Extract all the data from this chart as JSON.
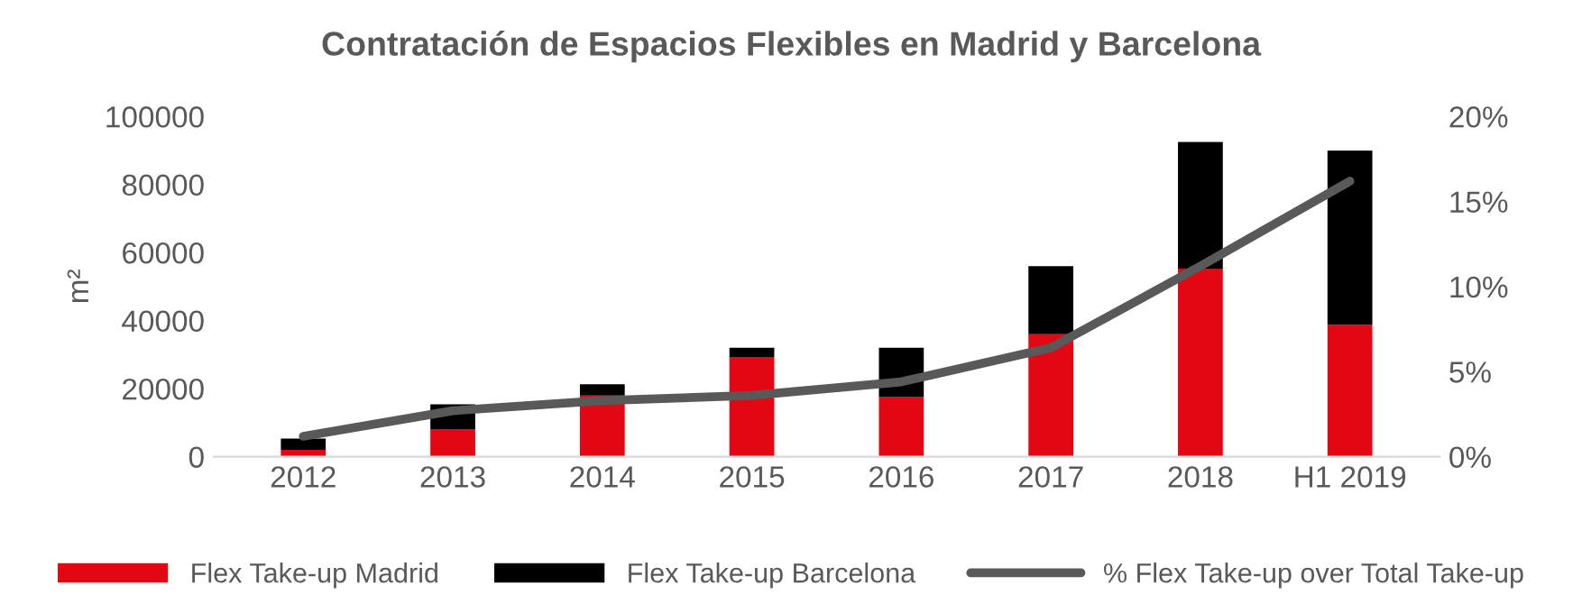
{
  "chart_data": {
    "type": "bar",
    "title": "Contratación de Espacios Flexibles en Madrid y Barcelona",
    "ylabel": "m²",
    "categories": [
      "2012",
      "2013",
      "2014",
      "2015",
      "2016",
      "2017",
      "2018",
      "H1 2019"
    ],
    "stacked": true,
    "legend": "bottom",
    "grid": false,
    "ylim": [
      0,
      100000
    ],
    "yticks": [
      0,
      20000,
      40000,
      60000,
      80000,
      100000
    ],
    "y2lim": [
      0,
      20
    ],
    "y2ticks": [
      {
        "value": 0,
        "label": "0%"
      },
      {
        "value": 5,
        "label": "5%"
      },
      {
        "value": 10,
        "label": "10%"
      },
      {
        "value": 15,
        "label": "15%"
      },
      {
        "value": 20,
        "label": "20%"
      }
    ],
    "series": [
      {
        "name": "Flex Take-up Madrid",
        "color": "#e30613",
        "values": [
          2000,
          8000,
          18000,
          29300,
          17500,
          36000,
          55300,
          38800
        ]
      },
      {
        "name": "Flex Take-up Barcelona",
        "color": "#000000",
        "values": [
          3300,
          7400,
          3300,
          2700,
          14500,
          20000,
          37200,
          51200
        ]
      },
      {
        "name": "% Flex Take-up over Total Take-up",
        "type": "line",
        "axis": "y2",
        "color": "#595959",
        "values": [
          1.2,
          2.7,
          3.3,
          3.6,
          4.4,
          6.4,
          11.2,
          16.2
        ]
      }
    ]
  }
}
